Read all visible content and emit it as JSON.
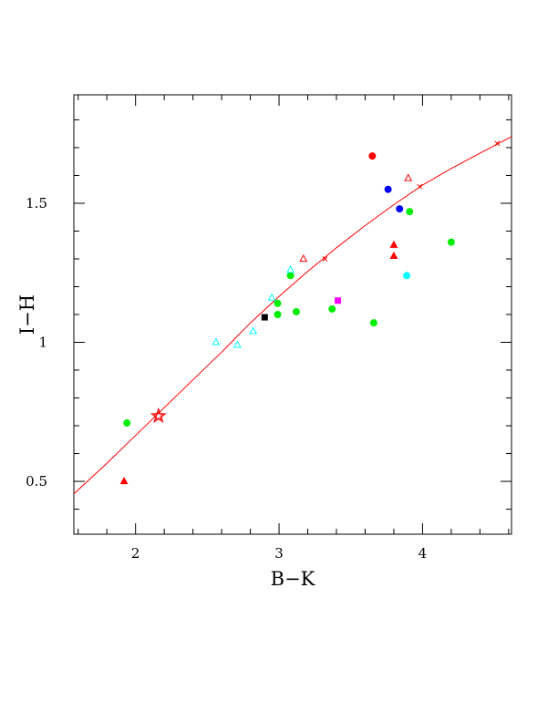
{
  "chart_data": {
    "type": "scatter",
    "title": "",
    "xlabel": "B−K",
    "ylabel": "I−H",
    "xlim": [
      1.57,
      4.62
    ],
    "ylim": [
      0.31,
      1.89
    ],
    "grid": false,
    "x_ticks": [
      {
        "value": 2,
        "label": "2"
      },
      {
        "value": 3,
        "label": "3"
      },
      {
        "value": 4,
        "label": "4"
      }
    ],
    "y_ticks": [
      {
        "value": 0.5,
        "label": "0.5"
      },
      {
        "value": 1.0,
        "label": "1"
      },
      {
        "value": 1.5,
        "label": "1.5"
      }
    ],
    "curve": {
      "color": "#ff0000",
      "points": [
        [
          1.57,
          0.455
        ],
        [
          1.8,
          0.565
        ],
        [
          2.0,
          0.665
        ],
        [
          2.2,
          0.765
        ],
        [
          2.4,
          0.865
        ],
        [
          2.6,
          0.965
        ],
        [
          2.8,
          1.07
        ],
        [
          3.0,
          1.165
        ],
        [
          3.2,
          1.255
        ],
        [
          3.4,
          1.34
        ],
        [
          3.6,
          1.42
        ],
        [
          3.8,
          1.495
        ],
        [
          4.0,
          1.565
        ],
        [
          4.2,
          1.625
        ],
        [
          4.4,
          1.68
        ],
        [
          4.62,
          1.74
        ]
      ],
      "crosses": [
        [
          3.32,
          1.3
        ],
        [
          3.98,
          1.56
        ],
        [
          4.52,
          1.715
        ]
      ]
    },
    "reference_star": {
      "x": 2.16,
      "y": 0.735,
      "color": "#ff0000"
    },
    "series": [
      {
        "marker": "circle",
        "color": "#00ee00",
        "filled": true,
        "points": [
          [
            1.94,
            0.71
          ],
          [
            2.99,
            1.14
          ],
          [
            2.99,
            1.1
          ],
          [
            3.08,
            1.24
          ],
          [
            3.12,
            1.11
          ],
          [
            3.37,
            1.12
          ],
          [
            3.66,
            1.07
          ],
          [
            3.91,
            1.47
          ],
          [
            4.2,
            1.36
          ]
        ]
      },
      {
        "marker": "circle",
        "color": "#ff0000",
        "filled": true,
        "points": [
          [
            3.65,
            1.67
          ]
        ]
      },
      {
        "marker": "circle",
        "color": "#0000ff",
        "filled": true,
        "points": [
          [
            3.76,
            1.55
          ],
          [
            3.84,
            1.48
          ]
        ]
      },
      {
        "marker": "circle",
        "color": "#00ffff",
        "filled": true,
        "points": [
          [
            3.89,
            1.24
          ]
        ]
      },
      {
        "marker": "triangle",
        "color": "#ff0000",
        "filled": true,
        "points": [
          [
            1.92,
            0.5
          ],
          [
            3.8,
            1.35
          ],
          [
            3.8,
            1.31
          ]
        ]
      },
      {
        "marker": "triangle",
        "color": "#ff0000",
        "filled": false,
        "points": [
          [
            3.17,
            1.3
          ],
          [
            3.9,
            1.59
          ]
        ]
      },
      {
        "marker": "triangle",
        "color": "#00ffff",
        "filled": false,
        "points": [
          [
            2.56,
            1.0
          ],
          [
            2.71,
            0.99
          ],
          [
            2.82,
            1.04
          ],
          [
            2.95,
            1.16
          ],
          [
            3.08,
            1.26
          ]
        ]
      },
      {
        "marker": "square",
        "color": "#000000",
        "filled": true,
        "points": [
          [
            2.9,
            1.09
          ]
        ]
      },
      {
        "marker": "square",
        "color": "#ff00ff",
        "filled": true,
        "points": [
          [
            3.41,
            1.15
          ]
        ]
      }
    ]
  }
}
